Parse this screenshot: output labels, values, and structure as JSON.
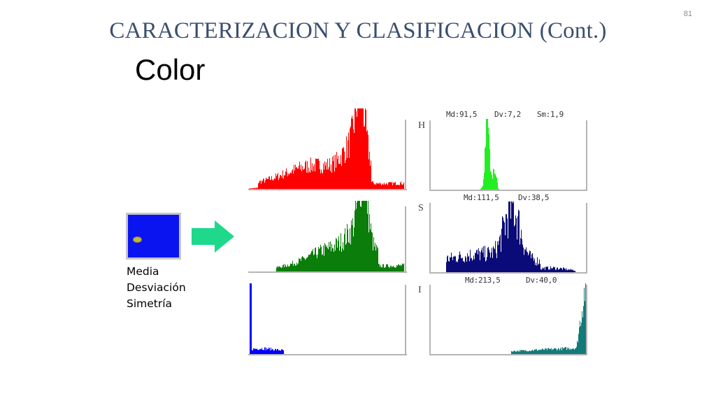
{
  "slide": {
    "number": "81",
    "title": "CARACTERIZACION Y CLASIFICACION (Cont.)",
    "subtitle": "Color"
  },
  "features": [
    "Media",
    "Desviación",
    "Simetría"
  ],
  "colors": {
    "title": "#3a4f6e",
    "red": "#ff0000",
    "green": "#0a7d0a",
    "blue": "#0000ff",
    "hue": "#22ee22",
    "saturation": "#0a0a78",
    "intensity": "#137a7a",
    "arrow": "#1ed98c"
  },
  "histograms": {
    "rgb": [
      {
        "channel": "red"
      },
      {
        "channel": "green"
      },
      {
        "channel": "blue"
      }
    ],
    "hsi": [
      {
        "letter": "H",
        "stats": [
          "Md:91,5",
          "Dv:7,2",
          "Sm:1,9"
        ]
      },
      {
        "letter": "S",
        "stats": [
          "Md:111,5",
          "Dv:38,5"
        ]
      },
      {
        "letter": "I",
        "stats": [
          "Md:213,5",
          "Dv:40,0"
        ]
      }
    ]
  }
}
